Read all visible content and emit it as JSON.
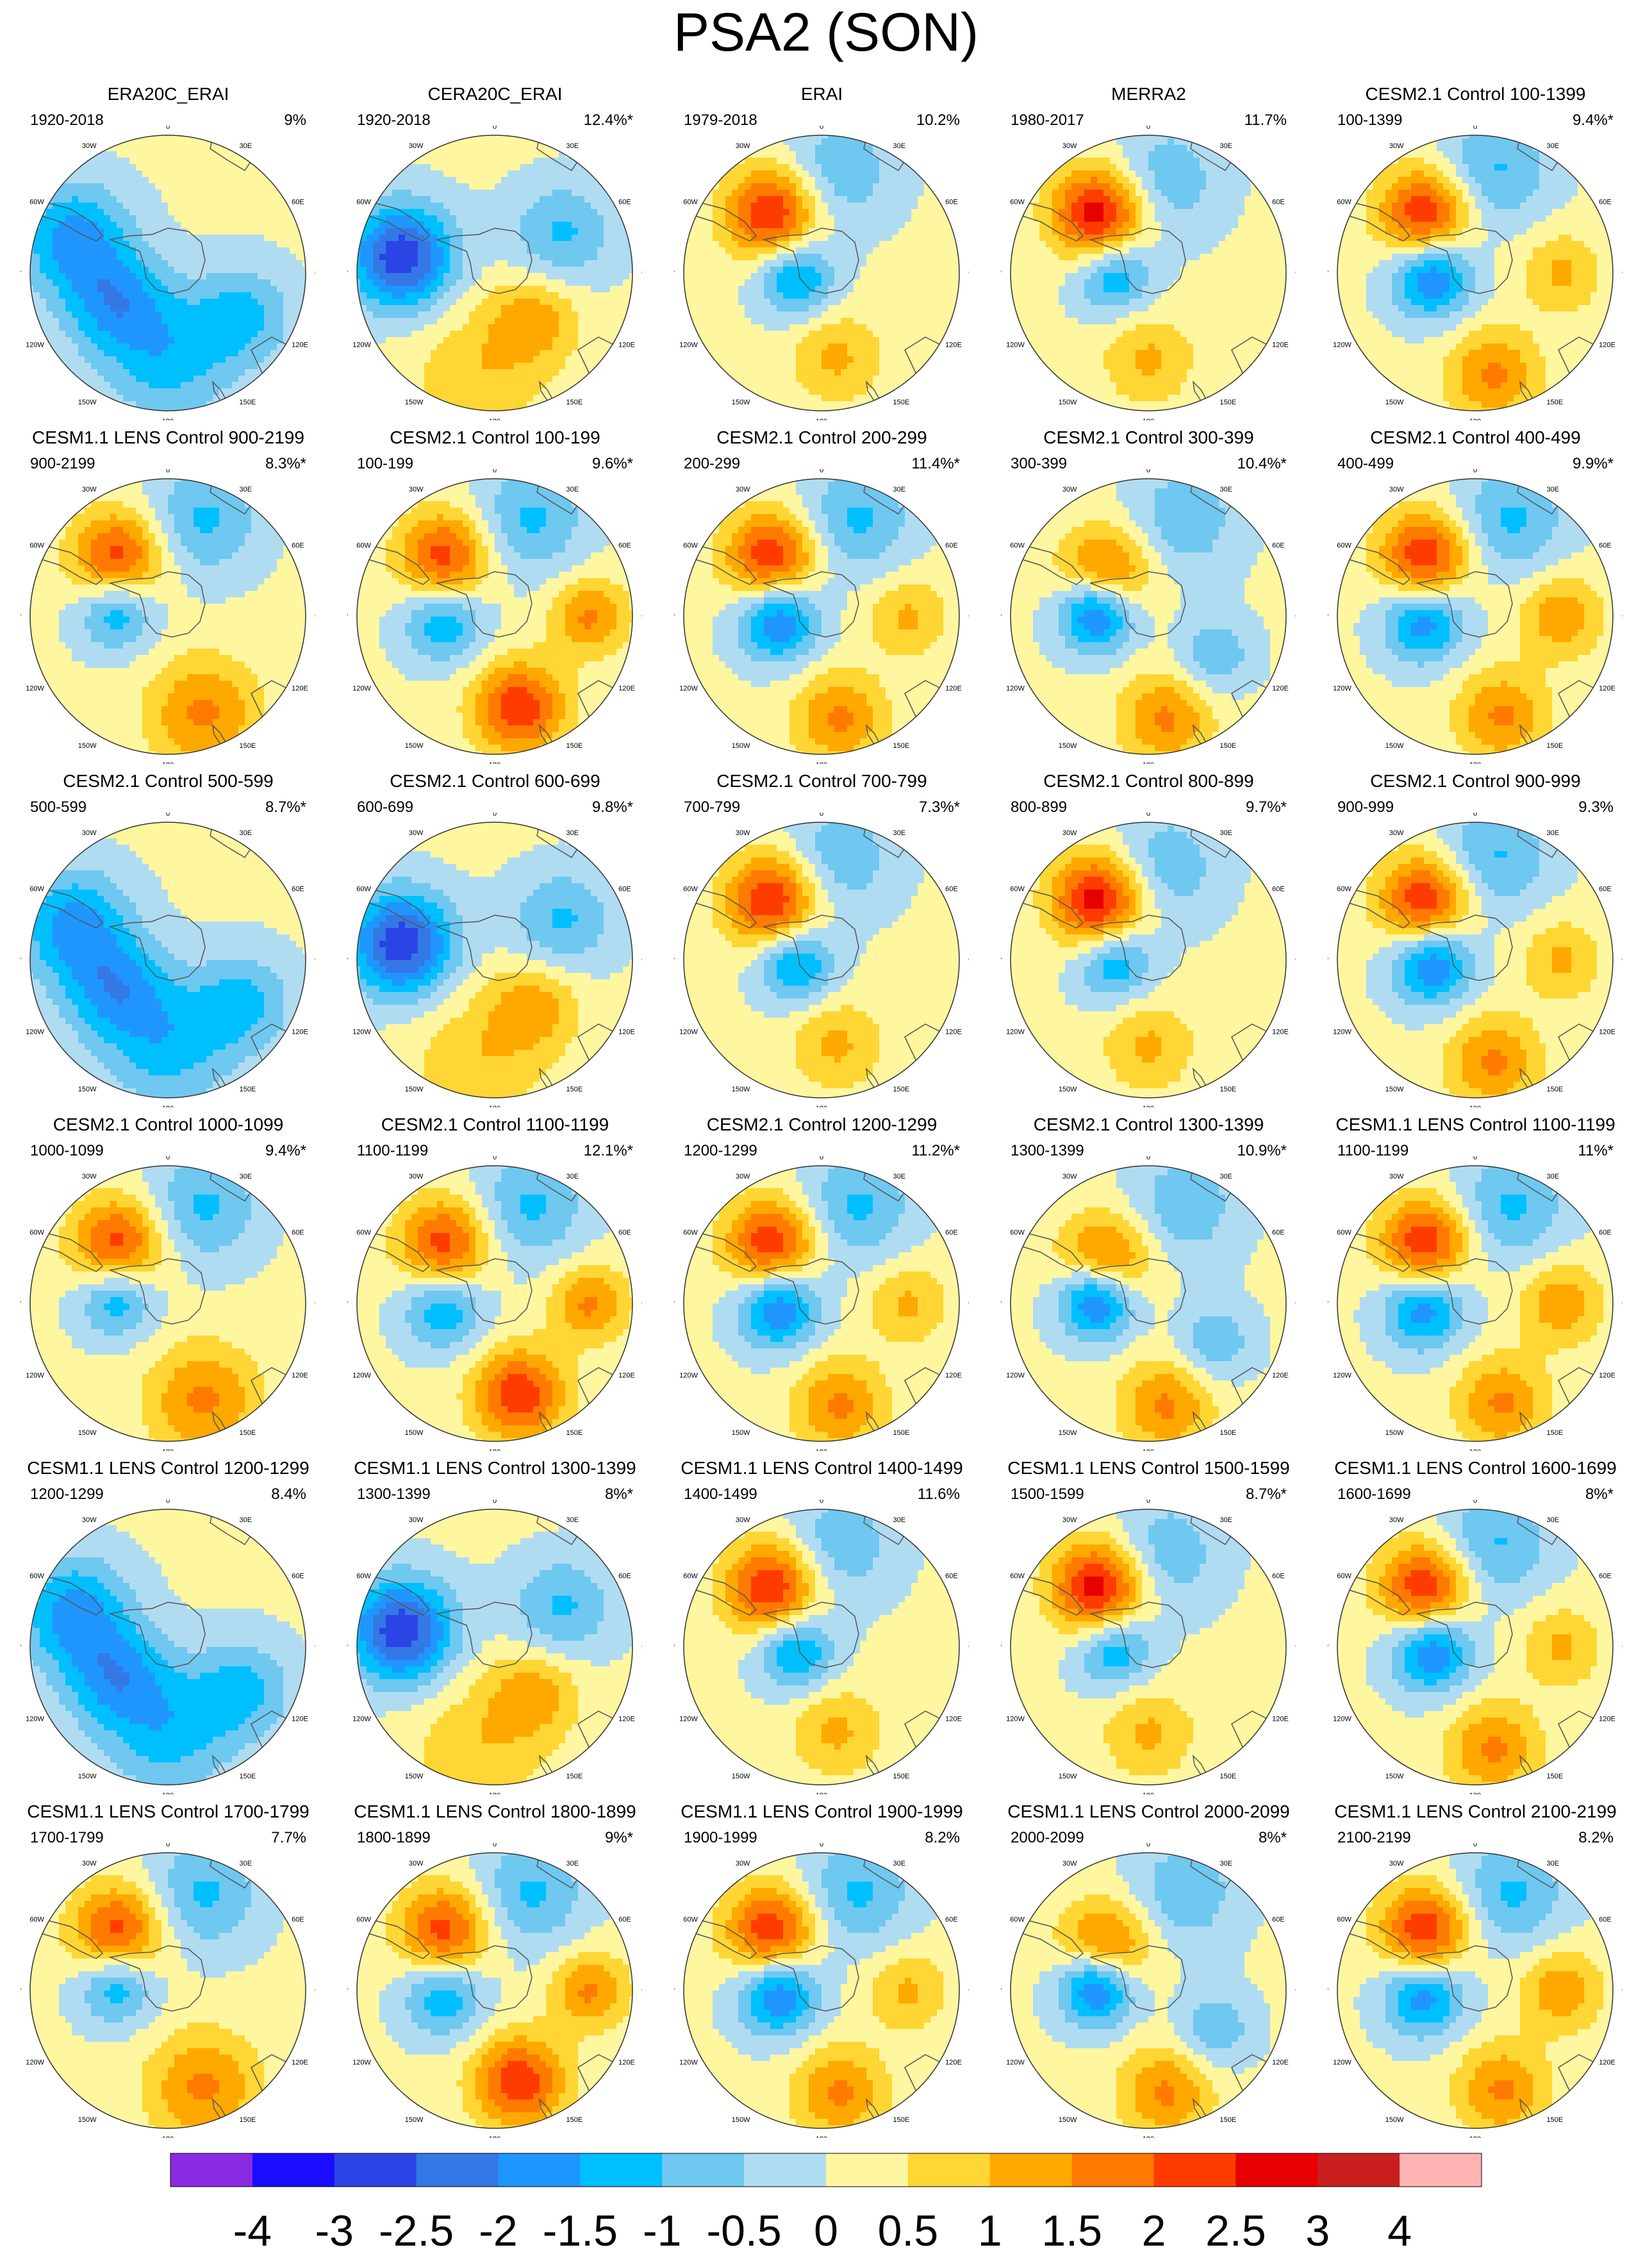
{
  "title": "PSA2 (SON)",
  "map_labels": {
    "lon_top": "0",
    "lon_bottom": "180",
    "lon_30w": "30W",
    "lon_30e": "30E",
    "lon_60w": "60W",
    "lon_60e": "60E",
    "lon_90w": "90W",
    "lon_90e": "90E",
    "lon_120w": "120W",
    "lon_120e": "120E",
    "lon_150w": "150W",
    "lon_150e": "150E"
  },
  "colors": {
    "levels": [
      "#8a2be2",
      "#1a0cff",
      "#2a44e6",
      "#3478e6",
      "#1f96ff",
      "#00bfff",
      "#6fc8f0",
      "#b0dcf2",
      "#fff6a0",
      "#ffd633",
      "#ffa800",
      "#ff7a00",
      "#ff3c00",
      "#e60000",
      "#c81e1e",
      "#ffb4b4"
    ]
  },
  "chart_data": {
    "type": "polar-contour-map-grid",
    "projection": "south polar stereographic",
    "colorbar": {
      "levels": [
        -4,
        -3,
        -2.5,
        -2,
        -1.5,
        -1,
        -0.5,
        0,
        0.5,
        1,
        1.5,
        2,
        2.5,
        3,
        4
      ],
      "tick_labels": [
        "-4",
        "-3",
        "-2.5",
        "-2",
        "-1.5",
        "-1",
        "-0.5",
        "0",
        "0.5",
        "1",
        "1.5",
        "2",
        "2.5",
        "3",
        "4"
      ]
    },
    "panels": [
      {
        "title": "ERA20C_ERAI",
        "period": "1920-2018",
        "variance": "9%",
        "variance_pct": 9.0,
        "significant": false
      },
      {
        "title": "CERA20C_ERAI",
        "period": "1920-2018",
        "variance": "12.4%*",
        "variance_pct": 12.4,
        "significant": true
      },
      {
        "title": "ERAI",
        "period": "1979-2018",
        "variance": "10.2%",
        "variance_pct": 10.2,
        "significant": false
      },
      {
        "title": "MERRA2",
        "period": "1980-2017",
        "variance": "11.7%",
        "variance_pct": 11.7,
        "significant": false
      },
      {
        "title": "CESM2.1 Control 100-1399",
        "period": "100-1399",
        "variance": "9.4%*",
        "variance_pct": 9.4,
        "significant": true
      },
      {
        "title": "CESM1.1 LENS Control 900-2199",
        "period": "900-2199",
        "variance": "8.3%*",
        "variance_pct": 8.3,
        "significant": true
      },
      {
        "title": "CESM2.1 Control 100-199",
        "period": "100-199",
        "variance": "9.6%*",
        "variance_pct": 9.6,
        "significant": true
      },
      {
        "title": "CESM2.1 Control 200-299",
        "period": "200-299",
        "variance": "11.4%*",
        "variance_pct": 11.4,
        "significant": true
      },
      {
        "title": "CESM2.1 Control 300-399",
        "period": "300-399",
        "variance": "10.4%*",
        "variance_pct": 10.4,
        "significant": true
      },
      {
        "title": "CESM2.1 Control 400-499",
        "period": "400-499",
        "variance": "9.9%*",
        "variance_pct": 9.9,
        "significant": true
      },
      {
        "title": "CESM2.1 Control 500-599",
        "period": "500-599",
        "variance": "8.7%*",
        "variance_pct": 8.7,
        "significant": true
      },
      {
        "title": "CESM2.1 Control 600-699",
        "period": "600-699",
        "variance": "9.8%*",
        "variance_pct": 9.8,
        "significant": true
      },
      {
        "title": "CESM2.1 Control 700-799",
        "period": "700-799",
        "variance": "7.3%*",
        "variance_pct": 7.3,
        "significant": true
      },
      {
        "title": "CESM2.1 Control 800-899",
        "period": "800-899",
        "variance": "9.7%*",
        "variance_pct": 9.7,
        "significant": true
      },
      {
        "title": "CESM2.1 Control 900-999",
        "period": "900-999",
        "variance": "9.3%",
        "variance_pct": 9.3,
        "significant": false
      },
      {
        "title": "CESM2.1 Control 1000-1099",
        "period": "1000-1099",
        "variance": "9.4%*",
        "variance_pct": 9.4,
        "significant": true
      },
      {
        "title": "CESM2.1 Control 1100-1199",
        "period": "1100-1199",
        "variance": "12.1%*",
        "variance_pct": 12.1,
        "significant": true
      },
      {
        "title": "CESM2.1 Control 1200-1299",
        "period": "1200-1299",
        "variance": "11.2%*",
        "variance_pct": 11.2,
        "significant": true
      },
      {
        "title": "CESM2.1 Control 1300-1399",
        "period": "1300-1399",
        "variance": "10.9%*",
        "variance_pct": 10.9,
        "significant": true
      },
      {
        "title": "CESM1.1 LENS Control 1100-1199",
        "period": "1100-1199",
        "variance": "11%*",
        "variance_pct": 11.0,
        "significant": true
      },
      {
        "title": "CESM1.1 LENS Control 1200-1299",
        "period": "1200-1299",
        "variance": "8.4%",
        "variance_pct": 8.4,
        "significant": false
      },
      {
        "title": "CESM1.1 LENS Control 1300-1399",
        "period": "1300-1399",
        "variance": "8%*",
        "variance_pct": 8.0,
        "significant": true
      },
      {
        "title": "CESM1.1 LENS Control 1400-1499",
        "period": "1400-1499",
        "variance": "11.6%",
        "variance_pct": 11.6,
        "significant": false
      },
      {
        "title": "CESM1.1 LENS Control 1500-1599",
        "period": "1500-1599",
        "variance": "8.7%*",
        "variance_pct": 8.7,
        "significant": true
      },
      {
        "title": "CESM1.1 LENS Control 1600-1699",
        "period": "1600-1699",
        "variance": "8%*",
        "variance_pct": 8.0,
        "significant": true
      },
      {
        "title": "CESM1.1 LENS Control 1700-1799",
        "period": "1700-1799",
        "variance": "7.7%",
        "variance_pct": 7.7,
        "significant": false
      },
      {
        "title": "CESM1.1 LENS Control 1800-1899",
        "period": "1800-1899",
        "variance": "9%*",
        "variance_pct": 9.0,
        "significant": true
      },
      {
        "title": "CESM1.1 LENS Control 1900-1999",
        "period": "1900-1999",
        "variance": "8.2%",
        "variance_pct": 8.2,
        "significant": false
      },
      {
        "title": "CESM1.1 LENS Control 2000-2099",
        "period": "2000-2099",
        "variance": "8%*",
        "variance_pct": 8.0,
        "significant": true
      },
      {
        "title": "CESM1.1 LENS Control 2100-2199",
        "period": "2100-2199",
        "variance": "8.2%",
        "variance_pct": 8.2,
        "significant": false
      }
    ]
  }
}
